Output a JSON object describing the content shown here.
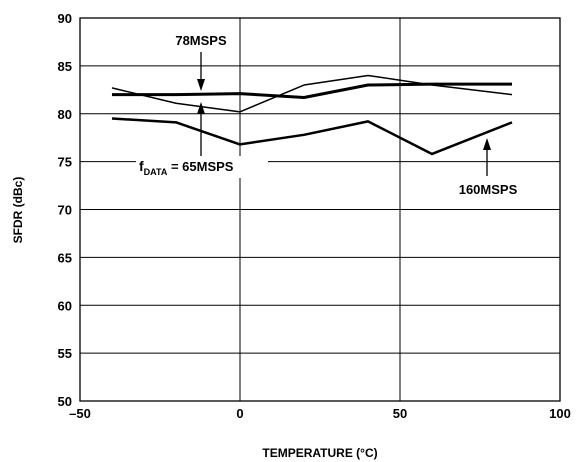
{
  "chart_data": {
    "type": "line",
    "title": "",
    "xlabel": "TEMPERATURE (°C)",
    "ylabel": "SFDR (dBc)",
    "xlim": [
      -50,
      100
    ],
    "ylim": [
      50,
      90
    ],
    "x_ticks": [
      "–50",
      "0",
      "50",
      "100"
    ],
    "y_ticks": [
      "50",
      "55",
      "60",
      "65",
      "70",
      "75",
      "80",
      "85",
      "90"
    ],
    "grid": true,
    "series": [
      {
        "name": "78MSPS",
        "x": [
          -40,
          -20,
          0,
          20,
          40,
          60,
          85
        ],
        "values": [
          82.0,
          82.0,
          82.1,
          81.7,
          83.0,
          83.1,
          83.1
        ]
      },
      {
        "name": "65MSPS",
        "x": [
          -40,
          -20,
          0,
          20,
          40,
          60,
          85
        ],
        "values": [
          82.7,
          81.1,
          80.2,
          83.0,
          84.0,
          83.0,
          82.0
        ]
      },
      {
        "name": "160MSPS",
        "x": [
          -40,
          -20,
          0,
          20,
          40,
          60,
          85
        ],
        "values": [
          79.5,
          79.1,
          76.8,
          77.8,
          79.2,
          75.8,
          79.1
        ]
      }
    ],
    "annotations": {
      "a78": "78MSPS",
      "fdata_f": "f",
      "fdata_sub": "DATA",
      "fdata_rest": " = 65MSPS",
      "a160": "160MSPS"
    }
  }
}
